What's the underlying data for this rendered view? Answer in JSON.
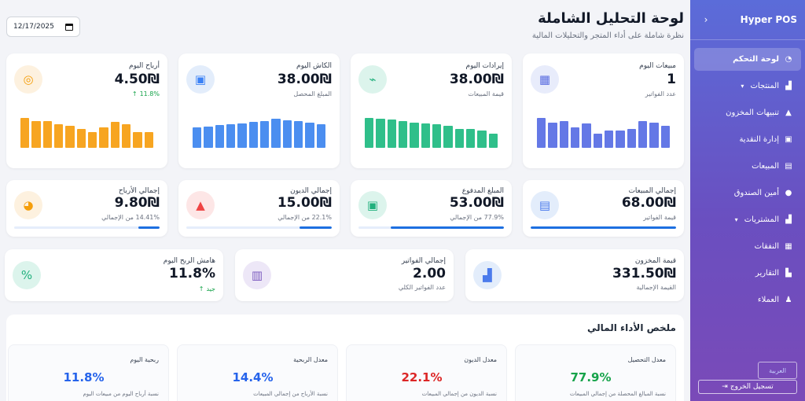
{
  "sidebar": {
    "brand": "Hyper POS",
    "items": [
      {
        "label": "لوحة التحكم",
        "icon": "◔",
        "active": true
      },
      {
        "label": "المنتجات",
        "icon": "▟",
        "caret": true
      },
      {
        "label": "تنبيهات المخزون",
        "icon": "▲"
      },
      {
        "label": "إدارة النقدية",
        "icon": "▣"
      },
      {
        "label": "المبيعات",
        "icon": "▤"
      },
      {
        "label": "أمين الصندوق",
        "icon": "●"
      },
      {
        "label": "المشتريات",
        "icon": "▟",
        "caret": true
      },
      {
        "label": "النفقات",
        "icon": "▦"
      },
      {
        "label": "التقارير",
        "icon": "▙"
      },
      {
        "label": "العملاء",
        "icon": "♟"
      }
    ],
    "lang_label": "العربية",
    "logout_label": "تسجيل الخروج"
  },
  "header": {
    "title": "لوحة التحليل الشاملة",
    "subtitle": "نظرة شاملة على أداء المتجر والتحليلات المالية",
    "date_value": "12/17/2025"
  },
  "row1": [
    {
      "label": "مبيعات اليوم",
      "value": "1",
      "sub": "عدد الفواتير",
      "icon_bg": "#e8ecfb",
      "icon_color": "#5b6ee1",
      "bar_color": "#6478e6",
      "bars": [
        0.95,
        0.8,
        0.85,
        0.65,
        0.78,
        0.45,
        0.55,
        0.55,
        0.6,
        0.85,
        0.8,
        0.7
      ]
    },
    {
      "label": "إيرادات اليوم",
      "value": "38.00₪",
      "sub": "قيمة المبيعات",
      "icon_bg": "#dcf4ec",
      "icon_color": "#22b07d",
      "bar_color": "#2fbf8a",
      "bars": [
        0.95,
        0.92,
        0.9,
        0.85,
        0.8,
        0.78,
        0.75,
        0.7,
        0.6,
        0.6,
        0.55,
        0.45
      ]
    },
    {
      "label": "الكاش اليوم",
      "value": "38.00₪",
      "sub": "المبلغ المحصل",
      "icon_bg": "#e3edfb",
      "icon_color": "#3b82f6",
      "bar_color": "#4b8ef0",
      "bars": [
        0.65,
        0.68,
        0.72,
        0.75,
        0.78,
        0.82,
        0.86,
        0.92,
        0.88,
        0.85,
        0.8,
        0.75
      ]
    },
    {
      "label": "أرباح اليوم",
      "value": "4.50₪",
      "sub": "11.8%",
      "icon_bg": "#fdf1df",
      "icon_color": "#f59e0b",
      "bar_color": "#f7a521",
      "bars": [
        0.95,
        0.85,
        0.85,
        0.75,
        0.7,
        0.6,
        0.5,
        0.65,
        0.82,
        0.75,
        0.5,
        0.5
      ]
    }
  ],
  "row2": [
    {
      "label": "إجمالي المبيعات",
      "value": "68.00₪",
      "sub": "قيمة الفواتير",
      "icon_bg": "#e3edfb",
      "icon_color": "#4b7bec",
      "icon": "▤",
      "progress": 1.0
    },
    {
      "label": "المبلغ المدفوع",
      "value": "53.00₪",
      "sub": "77.9% من الإجمالي",
      "icon_bg": "#dcf4ec",
      "icon_color": "#22b07d",
      "icon": "▣",
      "progress": 0.779
    },
    {
      "label": "إجمالي الديون",
      "value": "15.00₪",
      "sub": "22.1% من الإجمالي",
      "icon_bg": "#fde6e6",
      "icon_color": "#ef4444",
      "icon": "▲",
      "progress": 0.221
    },
    {
      "label": "إجمالي الأرباح",
      "value": "9.80₪",
      "sub": "14.41% من الإجمالي",
      "icon_bg": "#fdf1df",
      "icon_color": "#f59e0b",
      "icon": "◕",
      "progress": 0.1441
    }
  ],
  "row3": [
    {
      "label": "قيمة المخزون",
      "value": "331.50₪",
      "sub": "القيمة الإجمالية",
      "icon_bg": "#e3edfb",
      "icon_color": "#4b7bec",
      "icon": "▟"
    },
    {
      "label": "إجمالي الفواتير",
      "value": "2.00",
      "sub": "عدد الفواتير الكلي",
      "icon_bg": "#ede7f7",
      "icon_color": "#7c5cbf",
      "icon": "▥"
    },
    {
      "label": "هامش الربح اليوم",
      "value": "11.8%",
      "sub": "جيد",
      "icon_bg": "#dcf4ec",
      "icon_color": "#22b07d",
      "icon": "%"
    }
  ],
  "summary": {
    "title": "ملخص الأداء المالي",
    "cards": [
      {
        "label": "معدل التحصيل",
        "value": "77.9%",
        "desc": "نسبة المبالغ المحصلة من إجمالي المبيعات",
        "color": "#16a34a"
      },
      {
        "label": "معدل الديون",
        "value": "22.1%",
        "desc": "نسبة الديون من إجمالي المبيعات",
        "color": "#dc2626"
      },
      {
        "label": "معدل الربحية",
        "value": "14.4%",
        "desc": "نسبة الأرباح من إجمالي المبيعات",
        "color": "#2563eb"
      },
      {
        "label": "ربحية اليوم",
        "value": "11.8%",
        "desc": "نسبة أرباح اليوم من مبيعات اليوم",
        "color": "#2563eb"
      }
    ]
  }
}
